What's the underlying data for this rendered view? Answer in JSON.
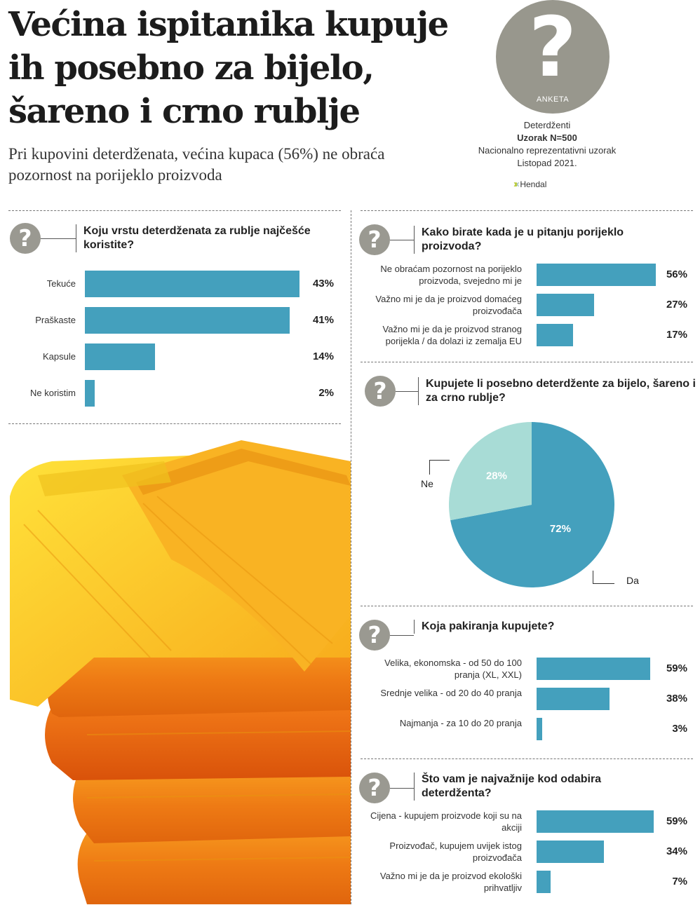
{
  "headline": "Većina ispitanika kupuje ih posebno za bijelo, šareno i crno rublje",
  "subhead": "Pri kupovini deterdženata, većina kupaca (56%) ne obraća pozornost na porijeklo proizvoda",
  "badge": {
    "symbol": "?",
    "label": "ANKETA"
  },
  "survey": {
    "topic": "Deterdženti",
    "sample": "Uzorak N=500",
    "method": "Nacionalno reprezentativni uzorak",
    "date": "Listopad 2021.",
    "source": "Hendal"
  },
  "icons": {
    "question": "question-icon",
    "source_logo": "hendal-logo-icon"
  },
  "colors": {
    "bar": "#44a0bd",
    "pie_light": "#a8dcd6",
    "badge": "#98978d"
  },
  "chart_data": [
    {
      "type": "bar",
      "title": "Koju vrstu deterdženata za rublje najčešće koristite?",
      "categories": [
        "Tekuće",
        "Praškaste",
        "Kapsule",
        "Ne koristim"
      ],
      "values": [
        43,
        41,
        14,
        2
      ],
      "labels": [
        "43%",
        "41%",
        "14%",
        "2%"
      ]
    },
    {
      "type": "bar",
      "title": "Kako birate kada je u pitanju porijeklo proizvoda?",
      "categories": [
        "Ne obraćam pozornost na porijeklo proizvoda, svejedno mi je",
        "Važno mi je da je proizvod domaćeg proizvođača",
        "Važno mi je da je proizvod stranog porijekla / da dolazi iz zemalja EU"
      ],
      "values": [
        56,
        27,
        17
      ],
      "labels": [
        "56%",
        "27%",
        "17%"
      ]
    },
    {
      "type": "pie",
      "title": "Kupujete li posebno deterdžente za bijelo, šareno i za crno rublje?",
      "categories": [
        "Da",
        "Ne"
      ],
      "values": [
        72,
        28
      ],
      "labels": [
        "72%",
        "28%"
      ]
    },
    {
      "type": "bar",
      "title": "Koja pakiranja kupujete?",
      "categories": [
        "Velika, ekonomska - od 50 do 100 pranja (XL, XXL)",
        "Srednje velika - od 20 do 40 pranja",
        "Najmanja - za 10 do 20 pranja"
      ],
      "values": [
        59,
        38,
        3
      ],
      "labels": [
        "59%",
        "38%",
        "3%"
      ]
    },
    {
      "type": "bar",
      "title": "Što vam je najvažnije kod odabira deterdženta?",
      "categories": [
        "Cijena - kupujem proizvode koji su na akciji",
        "Proizvođač, kupujem uvijek istog proizvođača",
        "Važno mi je da je proizvod ekološki prihvatljiv"
      ],
      "values": [
        59,
        34,
        7
      ],
      "labels": [
        "59%",
        "34%",
        "7%"
      ]
    }
  ]
}
